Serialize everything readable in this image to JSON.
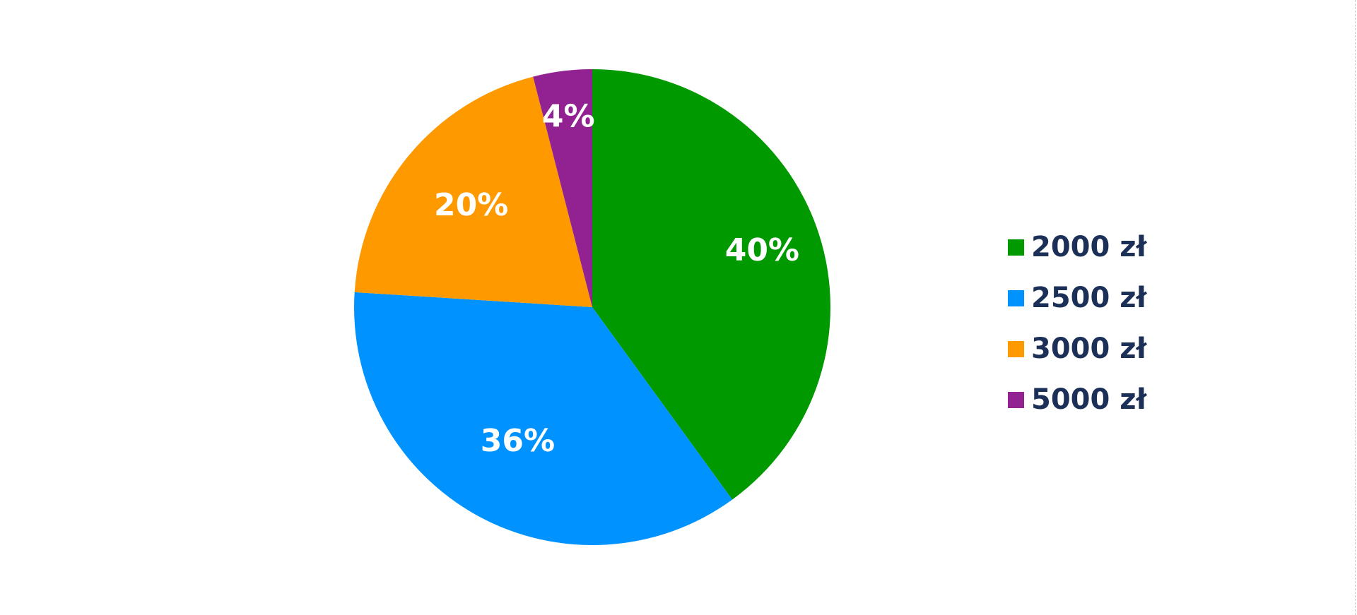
{
  "chart_data": {
    "type": "pie",
    "title": "",
    "slices": [
      {
        "label": "2000 zł",
        "value": 40,
        "display": "40%",
        "color": "#009900"
      },
      {
        "label": "2500 zł",
        "value": 36,
        "display": "36%",
        "color": "#0093ff"
      },
      {
        "label": "3000 zł",
        "value": 20,
        "display": "20%",
        "color": "#ff9900"
      },
      {
        "label": "5000 zł",
        "value": 4,
        "display": "4%",
        "color": "#922291"
      }
    ],
    "start_angle": "top, clockwise",
    "legend_position": "right"
  }
}
